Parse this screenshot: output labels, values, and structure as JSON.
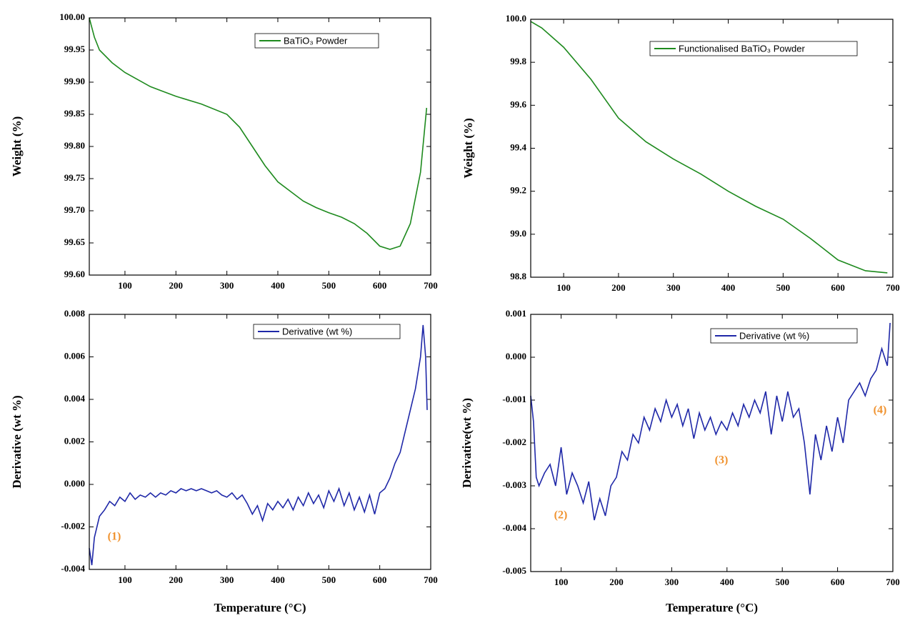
{
  "chart_data": [
    {
      "type": "line",
      "y_label": "Weight (%)",
      "legend": "upper right",
      "x": [
        30,
        40,
        50,
        75,
        100,
        150,
        200,
        250,
        300,
        325,
        350,
        375,
        400,
        425,
        450,
        475,
        500,
        525,
        550,
        575,
        600,
        620,
        640,
        660,
        680,
        692
      ],
      "series": [
        {
          "name": "BaTiO₃ Powder",
          "color": "#1e8a1e",
          "values": [
            100,
            99.97,
            99.95,
            99.93,
            99.915,
            99.893,
            99.878,
            99.866,
            99.85,
            99.83,
            99.8,
            99.77,
            99.745,
            99.73,
            99.715,
            99.705,
            99.697,
            99.69,
            99.68,
            99.665,
            99.645,
            99.64,
            99.645,
            99.68,
            99.76,
            99.86
          ]
        }
      ],
      "xlim": [
        30,
        700
      ],
      "ylim": [
        99.6,
        100
      ],
      "xticks": [
        100,
        200,
        300,
        400,
        500,
        600,
        700
      ],
      "yticks": [
        {
          "value": 99.6,
          "label": "99.60"
        },
        99.65,
        {
          "value": 99.7,
          "label": "99.70"
        },
        99.75,
        {
          "value": 99.8,
          "label": "99.80"
        },
        99.85,
        {
          "value": 99.9,
          "label": "99.90"
        },
        99.95,
        {
          "value": 100,
          "label": "100.00"
        }
      ],
      "annotations": []
    },
    {
      "type": "line",
      "y_label": "Weight (%)",
      "legend": "upper right",
      "x": [
        40,
        60,
        100,
        150,
        200,
        250,
        300,
        350,
        400,
        450,
        500,
        550,
        600,
        650,
        690
      ],
      "series": [
        {
          "name": "Functionalised BaTiO₃ Powder",
          "color": "#1e8a1e",
          "values": [
            99.99,
            99.96,
            99.87,
            99.72,
            99.54,
            99.43,
            99.35,
            99.28,
            99.2,
            99.13,
            99.07,
            98.98,
            98.88,
            98.83,
            98.82
          ]
        }
      ],
      "xlim": [
        40,
        700
      ],
      "ylim": [
        98.8,
        100
      ],
      "xticks": [
        100,
        200,
        300,
        400,
        500,
        600,
        700
      ],
      "yticks": [
        98.8,
        {
          "value": 99,
          "label": "99.0"
        },
        99.2,
        99.4,
        99.6,
        99.8,
        {
          "value": 100,
          "label": "100.0"
        }
      ],
      "annotations": []
    },
    {
      "type": "line",
      "y_label": "Derivative (wt %)",
      "x_label": "Temperature (°C)",
      "legend": "upper right",
      "x": [
        30,
        35,
        40,
        50,
        60,
        70,
        80,
        90,
        100,
        110,
        120,
        130,
        140,
        150,
        160,
        170,
        180,
        190,
        200,
        210,
        220,
        230,
        240,
        250,
        260,
        270,
        280,
        290,
        300,
        310,
        320,
        330,
        340,
        350,
        360,
        370,
        380,
        390,
        400,
        410,
        420,
        430,
        440,
        450,
        460,
        470,
        480,
        490,
        500,
        510,
        520,
        530,
        540,
        550,
        560,
        570,
        580,
        590,
        600,
        610,
        620,
        630,
        640,
        650,
        660,
        670,
        680,
        685,
        690,
        693
      ],
      "series": [
        {
          "name": "Derivative (wt %)",
          "color": "#1f28a8",
          "values": [
            -0.003,
            -0.0038,
            -0.0025,
            -0.0015,
            -0.0012,
            -0.0008,
            -0.001,
            -0.0006,
            -0.0008,
            -0.0004,
            -0.0007,
            -0.0005,
            -0.0006,
            -0.0004,
            -0.0006,
            -0.0004,
            -0.0005,
            -0.0003,
            -0.0004,
            -0.0002,
            -0.0003,
            -0.0002,
            -0.0003,
            -0.0002,
            -0.0003,
            -0.0004,
            -0.0003,
            -0.0005,
            -0.0006,
            -0.0004,
            -0.0007,
            -0.0005,
            -0.0009,
            -0.0014,
            -0.001,
            -0.0017,
            -0.0009,
            -0.0012,
            -0.0008,
            -0.0011,
            -0.0007,
            -0.0012,
            -0.0006,
            -0.001,
            -0.0004,
            -0.0009,
            -0.0005,
            -0.0011,
            -0.0003,
            -0.0008,
            -0.0002,
            -0.001,
            -0.0004,
            -0.0012,
            -0.0006,
            -0.0013,
            -0.0005,
            -0.0014,
            -0.0004,
            -0.0002,
            0.0003,
            0.001,
            0.0015,
            0.0025,
            0.0035,
            0.0045,
            0.006,
            0.0075,
            0.006,
            0.0035
          ]
        }
      ],
      "xlim": [
        30,
        700
      ],
      "ylim": [
        -0.004,
        0.008
      ],
      "xticks": [
        100,
        200,
        300,
        400,
        500,
        600,
        700
      ],
      "yticks": [
        -0.004,
        -0.002,
        {
          "value": 0,
          "label": "0.000"
        },
        0.002,
        0.004,
        0.006,
        0.008
      ],
      "annotations": [
        "(1)"
      ]
    },
    {
      "type": "line",
      "y_label": "Derivative(wt %)",
      "x_label": "Temperature (°C)",
      "legend": "upper right",
      "x": [
        45,
        50,
        55,
        60,
        70,
        80,
        90,
        100,
        110,
        120,
        130,
        140,
        150,
        160,
        170,
        180,
        190,
        200,
        210,
        220,
        230,
        240,
        250,
        260,
        270,
        280,
        290,
        300,
        310,
        320,
        330,
        340,
        350,
        360,
        370,
        380,
        390,
        400,
        410,
        420,
        430,
        440,
        450,
        460,
        470,
        480,
        490,
        500,
        510,
        520,
        530,
        540,
        550,
        560,
        570,
        580,
        590,
        600,
        610,
        620,
        630,
        640,
        650,
        660,
        670,
        680,
        690,
        695
      ],
      "series": [
        {
          "name": "Derivative (wt %)",
          "color": "#1f28a8",
          "values": [
            -0.0009,
            -0.0015,
            -0.0028,
            -0.003,
            -0.0027,
            -0.0025,
            -0.003,
            -0.0021,
            -0.0032,
            -0.0027,
            -0.003,
            -0.0034,
            -0.0029,
            -0.0038,
            -0.0033,
            -0.0037,
            -0.003,
            -0.0028,
            -0.0022,
            -0.0024,
            -0.0018,
            -0.002,
            -0.0014,
            -0.0017,
            -0.0012,
            -0.0015,
            -0.001,
            -0.0014,
            -0.0011,
            -0.0016,
            -0.0012,
            -0.0019,
            -0.0013,
            -0.0017,
            -0.0014,
            -0.0018,
            -0.0015,
            -0.0017,
            -0.0013,
            -0.0016,
            -0.0011,
            -0.0014,
            -0.001,
            -0.0013,
            -0.0008,
            -0.0018,
            -0.0009,
            -0.0015,
            -0.0008,
            -0.0014,
            -0.0012,
            -0.002,
            -0.0032,
            -0.0018,
            -0.0024,
            -0.0016,
            -0.0022,
            -0.0014,
            -0.002,
            -0.001,
            -0.0008,
            -0.0006,
            -0.0009,
            -0.0005,
            -0.0003,
            0.0002,
            -0.0002,
            0.0008
          ]
        }
      ],
      "xlim": [
        45,
        700
      ],
      "ylim": [
        -0.005,
        0.001
      ],
      "xticks": [
        100,
        200,
        300,
        400,
        500,
        600,
        700
      ],
      "yticks": [
        -0.005,
        -0.004,
        -0.003,
        -0.002,
        -0.001,
        {
          "value": 0,
          "label": "0.000"
        },
        0.001
      ],
      "annotations": [
        "(2)",
        "(3)",
        "(4)"
      ]
    }
  ]
}
